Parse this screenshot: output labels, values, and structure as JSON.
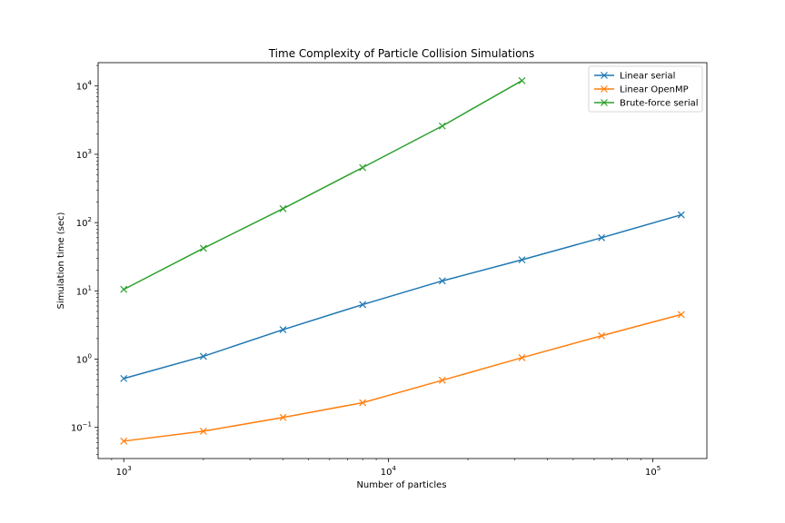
{
  "chart_data": {
    "type": "line",
    "title": "Time Complexity of Particle Collision Simulations",
    "xlabel": "Number of particles",
    "ylabel": "Simulation time (sec)",
    "xscale": "log",
    "yscale": "log",
    "xlim": [
      800,
      160000
    ],
    "ylim": [
      0.035,
      22000
    ],
    "xticks": [
      {
        "value": 1000,
        "base": "10",
        "exp": "3"
      },
      {
        "value": 10000,
        "base": "10",
        "exp": "4"
      },
      {
        "value": 100000,
        "base": "10",
        "exp": "5"
      }
    ],
    "yticks": [
      {
        "value": 0.1,
        "base": "10",
        "exp": "−1"
      },
      {
        "value": 1,
        "base": "10",
        "exp": "0"
      },
      {
        "value": 10,
        "base": "10",
        "exp": "1"
      },
      {
        "value": 100,
        "base": "10",
        "exp": "2"
      },
      {
        "value": 1000,
        "base": "10",
        "exp": "3"
      },
      {
        "value": 10000,
        "base": "10",
        "exp": "4"
      }
    ],
    "grid": false,
    "legend_position": "top-right",
    "marker": "x",
    "series": [
      {
        "name": "Linear serial",
        "color": "#1f77b4",
        "x": [
          1000,
          2000,
          4000,
          8000,
          16000,
          32000,
          64000,
          128000
        ],
        "y": [
          0.52,
          1.1,
          2.7,
          6.3,
          14,
          28.5,
          60,
          130
        ]
      },
      {
        "name": "Linear OpenMP",
        "color": "#ff7f0e",
        "x": [
          1000,
          2000,
          4000,
          8000,
          16000,
          32000,
          64000,
          128000
        ],
        "y": [
          0.063,
          0.088,
          0.14,
          0.23,
          0.49,
          1.05,
          2.2,
          4.5
        ]
      },
      {
        "name": "Brute-force serial",
        "color": "#2ca02c",
        "x": [
          1000,
          2000,
          4000,
          8000,
          16000,
          32000
        ],
        "y": [
          10.5,
          42,
          160,
          640,
          2600,
          12000
        ]
      }
    ]
  }
}
